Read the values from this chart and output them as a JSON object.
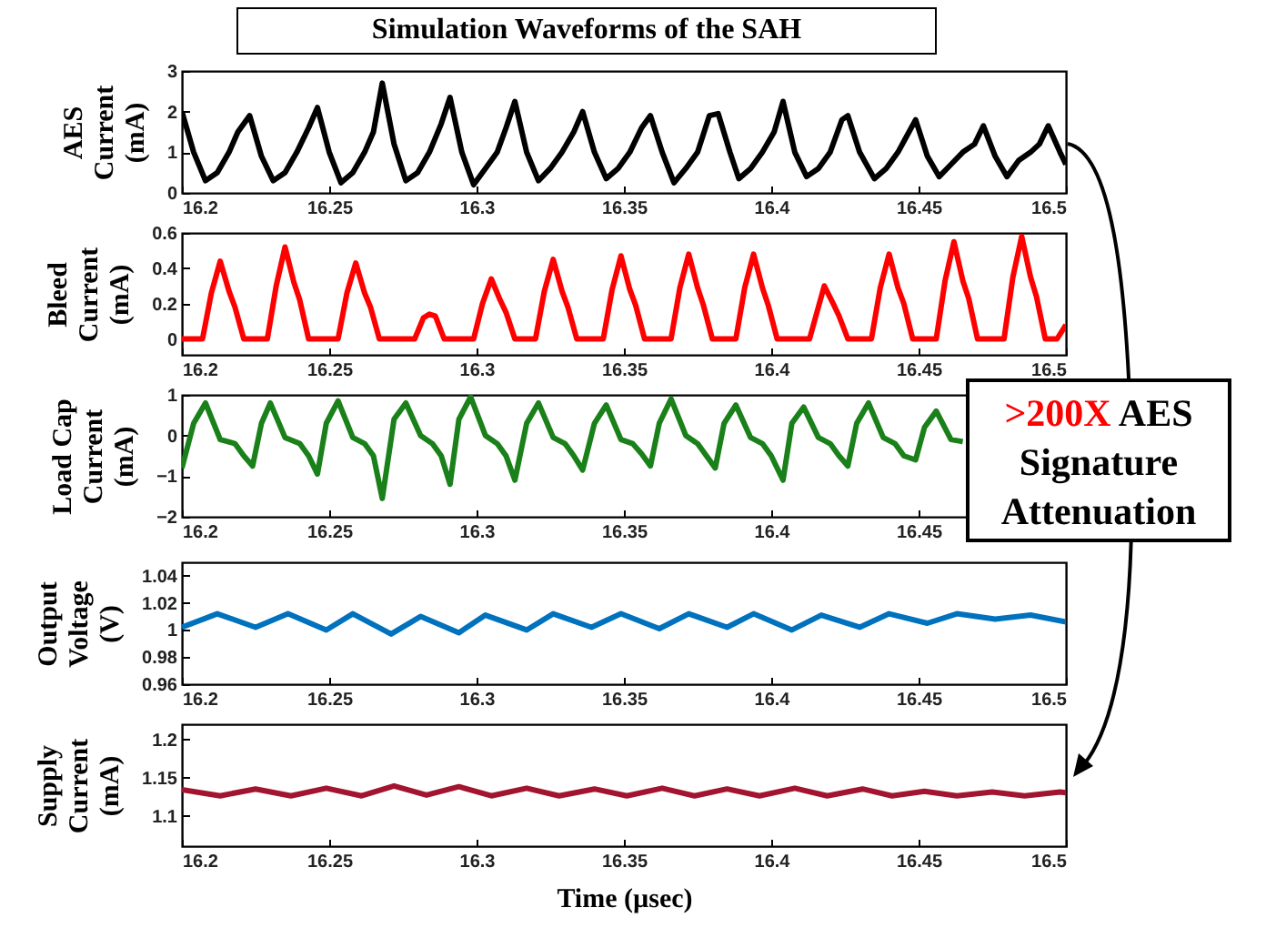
{
  "chart_data": [
    {
      "type": "line",
      "title": "Simulation Waveforms of the SAH",
      "ylabel": "AES\nCurrent\n(mA)",
      "xlim": [
        16.2,
        16.5
      ],
      "xticks": [
        16.2,
        16.25,
        16.3,
        16.35,
        16.4,
        16.45,
        16.5
      ],
      "ylim": [
        0,
        3
      ],
      "yticks": [
        0,
        1,
        2,
        3
      ],
      "series": [
        {
          "color": "#000000",
          "x": [
            16.2,
            16.204,
            16.208,
            16.212,
            16.216,
            16.219,
            16.223,
            16.227,
            16.231,
            16.235,
            16.239,
            16.243,
            16.246,
            16.25,
            16.254,
            16.258,
            16.262,
            16.265,
            16.268,
            16.272,
            16.276,
            16.28,
            16.284,
            16.288,
            16.291,
            16.295,
            16.299,
            16.303,
            16.307,
            16.31,
            16.313,
            16.317,
            16.321,
            16.325,
            16.329,
            16.333,
            16.336,
            16.34,
            16.344,
            16.348,
            16.352,
            16.356,
            16.359,
            16.363,
            16.367,
            16.371,
            16.375,
            16.379,
            16.382,
            16.386,
            16.389,
            16.393,
            16.397,
            16.401,
            16.404,
            16.408,
            16.412,
            16.416,
            16.42,
            16.424,
            16.426,
            16.43,
            16.435,
            16.439,
            16.443,
            16.446,
            16.449,
            16.453,
            16.457,
            16.461,
            16.465,
            16.469,
            16.472,
            16.476,
            16.48,
            16.484,
            16.488,
            16.491,
            16.494,
            16.498,
            16.5
          ],
          "values": [
            2.0,
            1.0,
            0.3,
            0.5,
            1.0,
            1.5,
            1.9,
            0.9,
            0.3,
            0.5,
            1.0,
            1.6,
            2.1,
            1.0,
            0.25,
            0.5,
            1.0,
            1.5,
            2.7,
            1.2,
            0.3,
            0.5,
            1.0,
            1.7,
            2.35,
            1.0,
            0.2,
            0.6,
            1.0,
            1.6,
            2.25,
            1.0,
            0.3,
            0.6,
            1.0,
            1.5,
            2.0,
            1.0,
            0.35,
            0.6,
            1.0,
            1.6,
            1.9,
            1.0,
            0.25,
            0.6,
            1.0,
            1.9,
            1.95,
            1.0,
            0.35,
            0.6,
            1.0,
            1.5,
            2.25,
            1.0,
            0.4,
            0.6,
            1.0,
            1.8,
            1.9,
            1.0,
            0.35,
            0.6,
            1.0,
            1.4,
            1.8,
            0.9,
            0.4,
            0.7,
            1.0,
            1.2,
            1.65,
            0.9,
            0.4,
            0.8,
            1.0,
            1.2,
            1.65,
            1.0,
            0.7
          ]
        }
      ]
    },
    {
      "type": "line",
      "ylabel": "Bleed\nCurrent\n(mA)",
      "xlim": [
        16.2,
        16.5
      ],
      "xticks": [
        16.2,
        16.25,
        16.3,
        16.35,
        16.4,
        16.45,
        16.5
      ],
      "ylim": [
        -0.09,
        0.6
      ],
      "yticks": [
        0,
        0.2,
        0.4,
        0.6
      ],
      "series": [
        {
          "color": "#ff0000",
          "x": [
            16.2,
            16.207,
            16.21,
            16.213,
            16.216,
            16.218,
            16.221,
            16.229,
            16.232,
            16.235,
            16.238,
            16.24,
            16.243,
            16.253,
            16.256,
            16.259,
            16.262,
            16.264,
            16.267,
            16.279,
            16.282,
            16.284,
            16.286,
            16.289,
            16.299,
            16.302,
            16.305,
            16.308,
            16.31,
            16.313,
            16.32,
            16.323,
            16.326,
            16.329,
            16.331,
            16.334,
            16.343,
            16.346,
            16.349,
            16.352,
            16.354,
            16.357,
            16.366,
            16.369,
            16.372,
            16.375,
            16.377,
            16.38,
            16.388,
            16.391,
            16.394,
            16.397,
            16.399,
            16.402,
            16.413,
            16.416,
            16.418,
            16.421,
            16.423,
            16.426,
            16.434,
            16.437,
            16.44,
            16.443,
            16.445,
            16.448,
            16.456,
            16.459,
            16.462,
            16.465,
            16.467,
            16.47,
            16.479,
            16.482,
            16.485,
            16.488,
            16.49,
            16.493,
            16.497,
            16.5
          ],
          "values": [
            0,
            0,
            0.26,
            0.44,
            0.27,
            0.18,
            0,
            0,
            0.3,
            0.52,
            0.32,
            0.22,
            0,
            0,
            0.26,
            0.43,
            0.26,
            0.18,
            0,
            0,
            0.12,
            0.14,
            0.13,
            0,
            0,
            0.2,
            0.34,
            0.22,
            0.15,
            0,
            0,
            0.27,
            0.45,
            0.27,
            0.18,
            0,
            0,
            0.28,
            0.47,
            0.28,
            0.19,
            0,
            0,
            0.29,
            0.48,
            0.29,
            0.19,
            0,
            0,
            0.29,
            0.48,
            0.29,
            0.19,
            0,
            0,
            0.18,
            0.3,
            0.2,
            0.13,
            0,
            0,
            0.29,
            0.48,
            0.29,
            0.2,
            0,
            0,
            0.33,
            0.55,
            0.33,
            0.23,
            0,
            0,
            0.35,
            0.58,
            0.35,
            0.24,
            0,
            0,
            0.08
          ]
        }
      ]
    },
    {
      "type": "line",
      "ylabel": "Load Cap\nCurrent\n(mA)",
      "xlim": [
        16.2,
        16.5
      ],
      "xticks": [
        16.2,
        16.25,
        16.3,
        16.35,
        16.4,
        16.45
      ],
      "ylim": [
        -2,
        1
      ],
      "yticks": [
        -2,
        -1,
        0,
        1
      ],
      "annotations": [
        ">200X AES Signature Attenuation"
      ],
      "series": [
        {
          "color": "#1a801a",
          "x": [
            16.2,
            16.204,
            16.208,
            16.213,
            16.218,
            16.221,
            16.224,
            16.227,
            16.23,
            16.235,
            16.24,
            16.243,
            16.246,
            16.249,
            16.253,
            16.258,
            16.262,
            16.265,
            16.268,
            16.272,
            16.276,
            16.281,
            16.285,
            16.288,
            16.291,
            16.294,
            16.298,
            16.303,
            16.307,
            16.31,
            16.313,
            16.317,
            16.321,
            16.326,
            16.33,
            16.333,
            16.336,
            16.34,
            16.344,
            16.349,
            16.353,
            16.356,
            16.359,
            16.362,
            16.366,
            16.371,
            16.375,
            16.378,
            16.381,
            16.384,
            16.388,
            16.393,
            16.397,
            16.4,
            16.404,
            16.407,
            16.411,
            16.416,
            16.42,
            16.423,
            16.426,
            16.429,
            16.433,
            16.438,
            16.442,
            16.445,
            16.449,
            16.452,
            16.456,
            16.461,
            16.465
          ],
          "values": [
            -0.8,
            0.3,
            0.8,
            -0.1,
            -0.2,
            -0.5,
            -0.75,
            0.3,
            0.8,
            -0.05,
            -0.2,
            -0.5,
            -0.95,
            0.3,
            0.85,
            -0.05,
            -0.2,
            -0.5,
            -1.55,
            0.4,
            0.8,
            0.0,
            -0.2,
            -0.5,
            -1.2,
            0.4,
            0.95,
            0.0,
            -0.2,
            -0.5,
            -1.1,
            0.3,
            0.8,
            -0.05,
            -0.2,
            -0.5,
            -0.85,
            0.3,
            0.75,
            -0.1,
            -0.2,
            -0.45,
            -0.75,
            0.3,
            0.9,
            0.0,
            -0.2,
            -0.5,
            -0.8,
            0.3,
            0.75,
            -0.05,
            -0.2,
            -0.5,
            -1.1,
            0.3,
            0.7,
            -0.05,
            -0.2,
            -0.5,
            -0.75,
            0.3,
            0.8,
            -0.05,
            -0.2,
            -0.5,
            -0.6,
            0.2,
            0.6,
            -0.1,
            -0.15
          ]
        }
      ]
    },
    {
      "type": "line",
      "ylabel": "Output\nVoltage\n(V)",
      "xlim": [
        16.2,
        16.5
      ],
      "xticks": [
        16.2,
        16.25,
        16.3,
        16.35,
        16.4,
        16.45,
        16.5
      ],
      "ylim": [
        0.96,
        1.05
      ],
      "yticks": [
        0.96,
        0.98,
        1,
        1.02,
        1.04
      ],
      "series": [
        {
          "color": "#0072bd",
          "x": [
            16.2,
            16.212,
            16.225,
            16.236,
            16.249,
            16.258,
            16.271,
            16.281,
            16.294,
            16.303,
            16.317,
            16.326,
            16.339,
            16.349,
            16.362,
            16.372,
            16.385,
            16.394,
            16.407,
            16.417,
            16.43,
            16.44,
            16.453,
            16.463,
            16.476,
            16.488,
            16.5
          ],
          "values": [
            1.002,
            1.012,
            1.002,
            1.012,
            1.0,
            1.012,
            0.997,
            1.01,
            0.998,
            1.011,
            1.0,
            1.012,
            1.002,
            1.012,
            1.001,
            1.012,
            1.002,
            1.012,
            1.0,
            1.011,
            1.002,
            1.012,
            1.005,
            1.012,
            1.008,
            1.011,
            1.006
          ]
        }
      ]
    },
    {
      "type": "line",
      "ylabel": "Supply\nCurrent\n(mA)",
      "xlabel": "Time (µsec)",
      "xlim": [
        16.2,
        16.5
      ],
      "xticks": [
        16.2,
        16.25,
        16.3,
        16.35,
        16.4,
        16.45,
        16.5
      ],
      "ylim": [
        1.06,
        1.22
      ],
      "yticks": [
        1.1,
        1.15,
        1.2
      ],
      "series": [
        {
          "color": "#a2142f",
          "x": [
            16.2,
            16.213,
            16.225,
            16.237,
            16.249,
            16.261,
            16.272,
            16.283,
            16.294,
            16.305,
            16.317,
            16.328,
            16.34,
            16.351,
            16.363,
            16.374,
            16.385,
            16.396,
            16.408,
            16.419,
            16.431,
            16.441,
            16.452,
            16.463,
            16.475,
            16.486,
            16.498,
            16.5
          ],
          "values": [
            1.134,
            1.126,
            1.135,
            1.126,
            1.136,
            1.126,
            1.139,
            1.127,
            1.138,
            1.126,
            1.136,
            1.126,
            1.135,
            1.126,
            1.136,
            1.126,
            1.135,
            1.126,
            1.136,
            1.126,
            1.135,
            1.126,
            1.132,
            1.126,
            1.131,
            1.126,
            1.131,
            1.13
          ]
        }
      ]
    }
  ]
}
